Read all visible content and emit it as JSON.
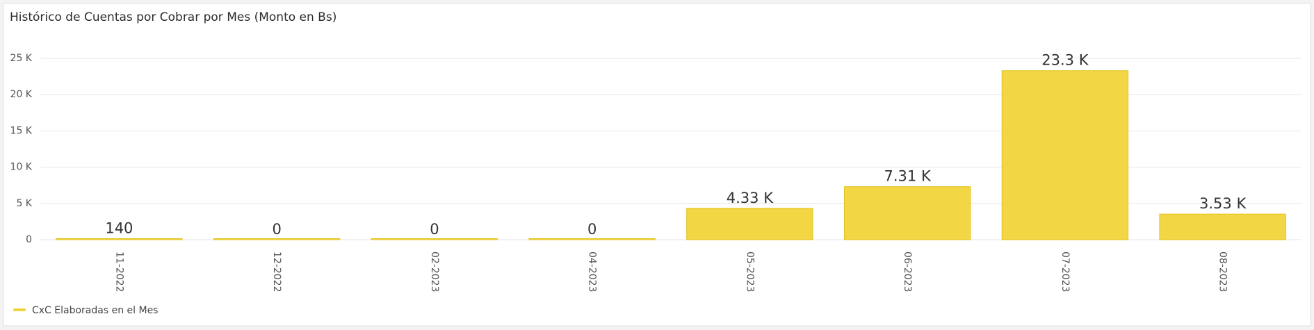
{
  "chart_data": {
    "type": "bar",
    "title": "Histórico de Cuentas por Cobrar por Mes (Monto en Bs)",
    "categories": [
      "11-2022",
      "12-2022",
      "02-2023",
      "04-2023",
      "05-2023",
      "06-2023",
      "07-2023",
      "08-2023"
    ],
    "series": [
      {
        "name": "CxC Elaboradas en el Mes",
        "color": "#f2d43a",
        "values": [
          140,
          0,
          0,
          0,
          4330,
          7310,
          23300,
          3530
        ],
        "value_labels": [
          "140",
          "0",
          "0",
          "0",
          "4.33 K",
          "7.31 K",
          "23.3 K",
          "3.53 K"
        ]
      }
    ],
    "ylim": [
      0,
      25000
    ],
    "yticks": [
      0,
      {
        "value": 5000,
        "label": "5 K"
      },
      {
        "value": 10000,
        "label": "10 K"
      },
      {
        "value": 15000,
        "label": "15 K"
      },
      {
        "value": 20000,
        "label": "20 K"
      },
      {
        "value": 25000,
        "label": "25 K"
      }
    ],
    "grid": true
  }
}
